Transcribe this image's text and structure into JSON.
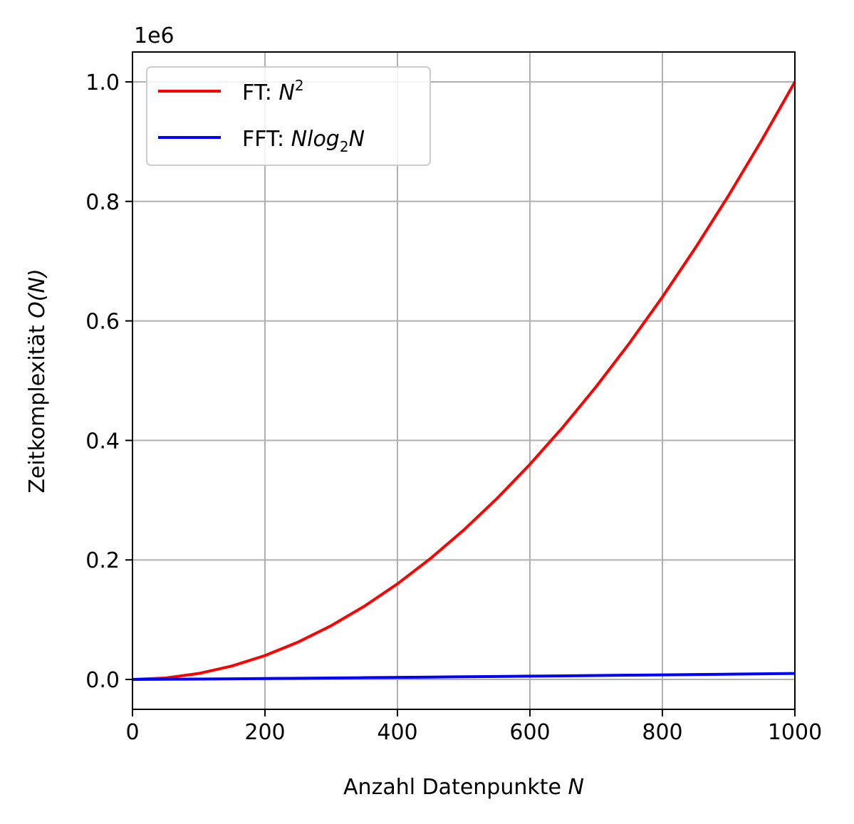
{
  "chart_data": {
    "type": "line",
    "title": "",
    "offset_label": "1e6",
    "xlabel": "Anzahl Datenpunkte",
    "xlabel_var": "N",
    "ylabel": "Zeitkomplexität",
    "ylabel_var": "O(N)",
    "xlim": [
      0,
      1000
    ],
    "ylim": [
      -0.05,
      1.05
    ],
    "x_ticks": [
      0,
      200,
      400,
      600,
      800,
      1000
    ],
    "x_tick_labels": [
      "0",
      "200",
      "400",
      "600",
      "800",
      "1000"
    ],
    "y_ticks": [
      0.0,
      0.2,
      0.4,
      0.6,
      0.8,
      1.0
    ],
    "y_tick_labels": [
      "0.0",
      "0.2",
      "0.4",
      "0.6",
      "0.8",
      "1.0"
    ],
    "grid": true,
    "legend_position": "top-left",
    "x": [
      1,
      50,
      100,
      150,
      200,
      250,
      300,
      350,
      400,
      450,
      500,
      550,
      600,
      650,
      700,
      750,
      800,
      850,
      900,
      950,
      1000
    ],
    "series": [
      {
        "name": "FT: N²",
        "legend_prefix": "FT: ",
        "legend_math": "N",
        "legend_sup": "2",
        "color": "#ff0000",
        "values": [
          1e-06,
          0.0025,
          0.01,
          0.0225,
          0.04,
          0.0625,
          0.09,
          0.1225,
          0.16,
          0.2025,
          0.25,
          0.3025,
          0.36,
          0.4225,
          0.49,
          0.5625,
          0.64,
          0.7225,
          0.81,
          0.9025,
          1.0
        ]
      },
      {
        "name": "FFT: Nlog₂N",
        "legend_prefix": "FFT: ",
        "legend_math": "Nlog",
        "legend_sub": "2",
        "legend_math_end": "N",
        "color": "#0000ff",
        "values": [
          0.0,
          0.000282,
          0.000664,
          0.001084,
          0.001529,
          0.001991,
          0.002469,
          0.002958,
          0.003458,
          0.003966,
          0.004483,
          0.005007,
          0.005537,
          0.006073,
          0.006616,
          0.007163,
          0.007715,
          0.008272,
          0.008832,
          0.009397,
          0.009966
        ]
      }
    ]
  }
}
